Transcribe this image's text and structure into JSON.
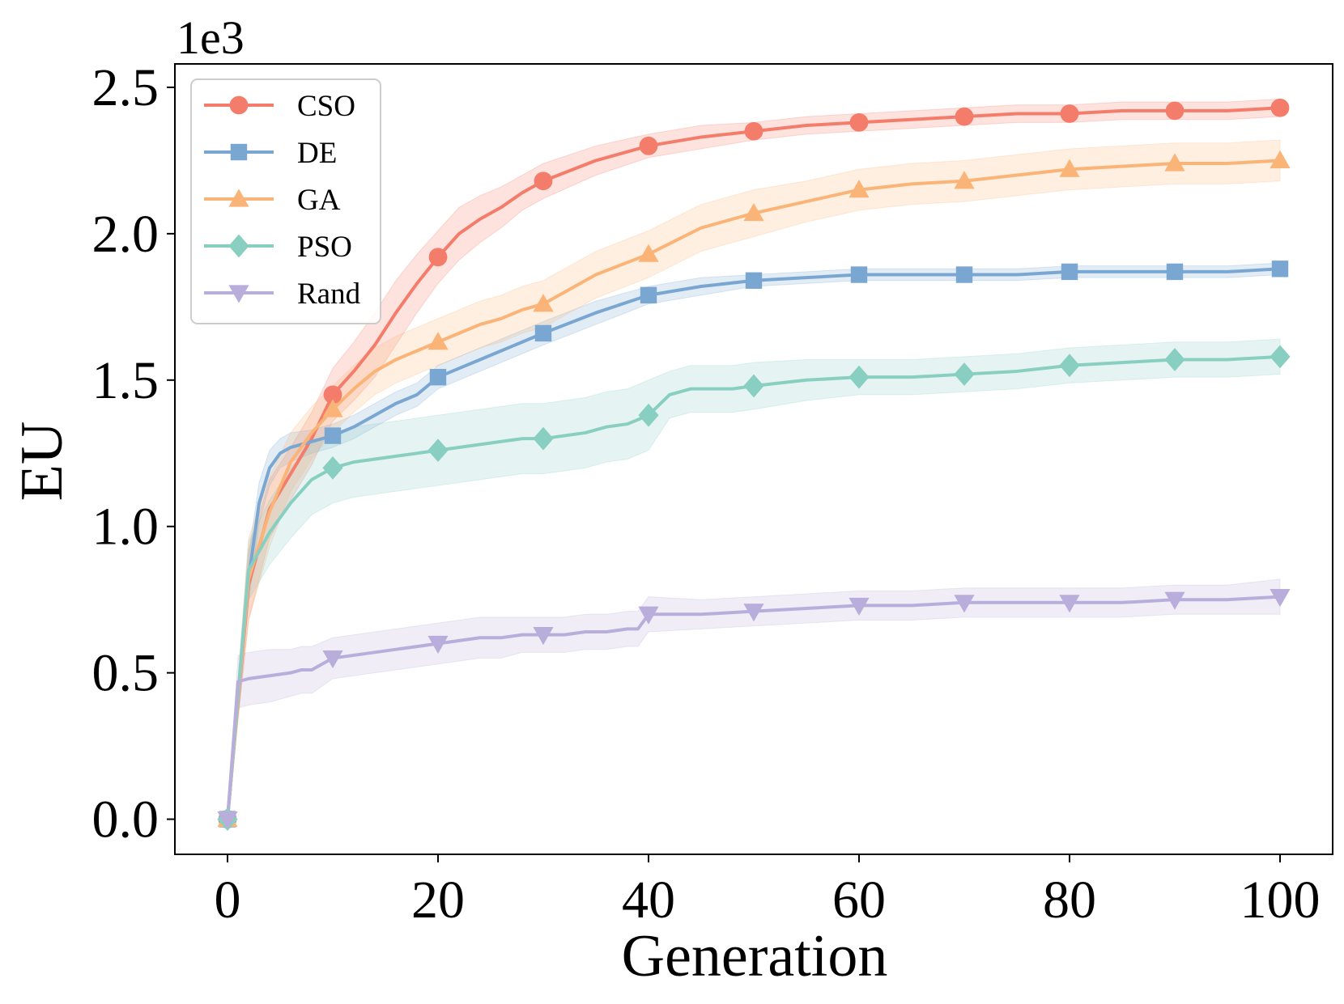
{
  "chart_data": {
    "type": "line",
    "title": "",
    "xlabel": "Generation",
    "ylabel": "EU",
    "y_offset_label": "1e3",
    "xlim": [
      -5,
      105
    ],
    "ylim": [
      -0.12,
      2.58
    ],
    "x_ticks": [
      0,
      20,
      40,
      60,
      80,
      100
    ],
    "x_tick_labels": [
      "0",
      "20",
      "40",
      "60",
      "80",
      "100"
    ],
    "y_ticks": [
      0,
      0.5,
      1.0,
      1.5,
      2.0,
      2.5
    ],
    "y_tick_labels": [
      "0.0",
      "0.5",
      "1.0",
      "1.5",
      "2.0",
      "2.5"
    ],
    "legend_position": "top-left",
    "series": [
      {
        "name": "CSO",
        "color": "#f47c6b",
        "marker": "circle",
        "x": [
          0,
          2,
          4,
          6,
          8,
          10,
          12,
          14,
          16,
          18,
          20,
          22,
          24,
          26,
          28,
          30,
          35,
          40,
          45,
          50,
          55,
          60,
          65,
          70,
          75,
          80,
          85,
          90,
          95,
          100
        ],
        "values": [
          0,
          0.8,
          1.06,
          1.18,
          1.3,
          1.45,
          1.53,
          1.62,
          1.73,
          1.83,
          1.92,
          2.0,
          2.05,
          2.09,
          2.14,
          2.18,
          2.25,
          2.3,
          2.33,
          2.35,
          2.37,
          2.38,
          2.39,
          2.4,
          2.41,
          2.41,
          2.42,
          2.42,
          2.42,
          2.43
        ],
        "band": [
          0,
          0.12,
          0.1,
          0.09,
          0.09,
          0.09,
          0.1,
          0.11,
          0.11,
          0.1,
          0.09,
          0.09,
          0.08,
          0.07,
          0.06,
          0.06,
          0.05,
          0.04,
          0.04,
          0.03,
          0.03,
          0.03,
          0.03,
          0.03,
          0.03,
          0.03,
          0.03,
          0.03,
          0.03,
          0.03
        ]
      },
      {
        "name": "DE",
        "color": "#7aa7d2",
        "marker": "square",
        "x": [
          0,
          2,
          3,
          4,
          5,
          6,
          8,
          10,
          12,
          14,
          16,
          18,
          20,
          22,
          24,
          26,
          28,
          30,
          35,
          40,
          45,
          50,
          55,
          60,
          65,
          70,
          75,
          80,
          85,
          90,
          95,
          100
        ],
        "values": [
          0,
          0.82,
          1.08,
          1.2,
          1.25,
          1.27,
          1.29,
          1.31,
          1.34,
          1.38,
          1.42,
          1.45,
          1.51,
          1.54,
          1.57,
          1.6,
          1.63,
          1.66,
          1.73,
          1.79,
          1.82,
          1.84,
          1.85,
          1.86,
          1.86,
          1.86,
          1.86,
          1.87,
          1.87,
          1.87,
          1.87,
          1.88
        ],
        "band": [
          0,
          0.08,
          0.07,
          0.06,
          0.05,
          0.05,
          0.04,
          0.04,
          0.04,
          0.04,
          0.04,
          0.04,
          0.04,
          0.04,
          0.04,
          0.04,
          0.04,
          0.04,
          0.04,
          0.03,
          0.03,
          0.02,
          0.02,
          0.02,
          0.02,
          0.02,
          0.02,
          0.02,
          0.02,
          0.02,
          0.02,
          0.02
        ]
      },
      {
        "name": "GA",
        "color": "#fbb477",
        "marker": "triangle-up",
        "x": [
          0,
          2,
          4,
          6,
          8,
          10,
          12,
          14,
          16,
          18,
          20,
          22,
          24,
          26,
          28,
          30,
          35,
          40,
          45,
          50,
          55,
          60,
          65,
          70,
          75,
          80,
          85,
          90,
          95,
          100
        ],
        "values": [
          0,
          0.82,
          1.05,
          1.22,
          1.32,
          1.4,
          1.47,
          1.53,
          1.57,
          1.6,
          1.63,
          1.66,
          1.69,
          1.71,
          1.74,
          1.76,
          1.86,
          1.93,
          2.02,
          2.07,
          2.11,
          2.15,
          2.17,
          2.18,
          2.2,
          2.22,
          2.23,
          2.24,
          2.24,
          2.25
        ],
        "band": [
          0,
          0.14,
          0.12,
          0.1,
          0.09,
          0.08,
          0.08,
          0.08,
          0.08,
          0.08,
          0.08,
          0.08,
          0.08,
          0.08,
          0.08,
          0.08,
          0.08,
          0.08,
          0.08,
          0.08,
          0.07,
          0.07,
          0.07,
          0.07,
          0.07,
          0.07,
          0.07,
          0.07,
          0.07,
          0.07
        ]
      },
      {
        "name": "PSO",
        "color": "#88cfc2",
        "marker": "diamond",
        "x": [
          0,
          2,
          4,
          6,
          8,
          10,
          12,
          14,
          16,
          18,
          20,
          22,
          24,
          26,
          28,
          30,
          32,
          34,
          36,
          38,
          40,
          42,
          44,
          46,
          48,
          50,
          55,
          60,
          65,
          70,
          75,
          80,
          85,
          90,
          95,
          100
        ],
        "values": [
          0,
          0.85,
          0.98,
          1.08,
          1.16,
          1.2,
          1.22,
          1.23,
          1.24,
          1.25,
          1.26,
          1.27,
          1.28,
          1.29,
          1.3,
          1.3,
          1.31,
          1.32,
          1.34,
          1.35,
          1.38,
          1.45,
          1.47,
          1.47,
          1.47,
          1.48,
          1.5,
          1.51,
          1.51,
          1.52,
          1.53,
          1.55,
          1.56,
          1.57,
          1.57,
          1.58
        ],
        "band": [
          0,
          0.1,
          0.11,
          0.12,
          0.12,
          0.12,
          0.12,
          0.12,
          0.12,
          0.12,
          0.12,
          0.12,
          0.12,
          0.12,
          0.12,
          0.12,
          0.12,
          0.12,
          0.12,
          0.12,
          0.12,
          0.08,
          0.08,
          0.08,
          0.08,
          0.08,
          0.07,
          0.06,
          0.06,
          0.06,
          0.06,
          0.06,
          0.06,
          0.06,
          0.06,
          0.06
        ]
      },
      {
        "name": "Rand",
        "color": "#b9aedb",
        "marker": "triangle-down",
        "x": [
          0,
          1,
          2,
          4,
          6,
          7,
          8,
          10,
          12,
          14,
          16,
          18,
          20,
          22,
          24,
          26,
          28,
          30,
          32,
          34,
          36,
          38,
          39,
          40,
          45,
          50,
          55,
          60,
          65,
          70,
          75,
          80,
          85,
          90,
          95,
          100
        ],
        "values": [
          0,
          0.47,
          0.48,
          0.49,
          0.5,
          0.51,
          0.51,
          0.55,
          0.56,
          0.57,
          0.58,
          0.59,
          0.6,
          0.61,
          0.62,
          0.62,
          0.63,
          0.63,
          0.63,
          0.64,
          0.64,
          0.65,
          0.65,
          0.7,
          0.7,
          0.71,
          0.72,
          0.73,
          0.73,
          0.74,
          0.74,
          0.74,
          0.74,
          0.75,
          0.75,
          0.76
        ],
        "band": [
          0,
          0.09,
          0.09,
          0.09,
          0.08,
          0.08,
          0.08,
          0.07,
          0.07,
          0.07,
          0.07,
          0.07,
          0.07,
          0.07,
          0.07,
          0.07,
          0.06,
          0.06,
          0.06,
          0.06,
          0.06,
          0.06,
          0.06,
          0.06,
          0.05,
          0.05,
          0.05,
          0.05,
          0.05,
          0.05,
          0.05,
          0.05,
          0.05,
          0.05,
          0.05,
          0.06
        ]
      }
    ]
  }
}
